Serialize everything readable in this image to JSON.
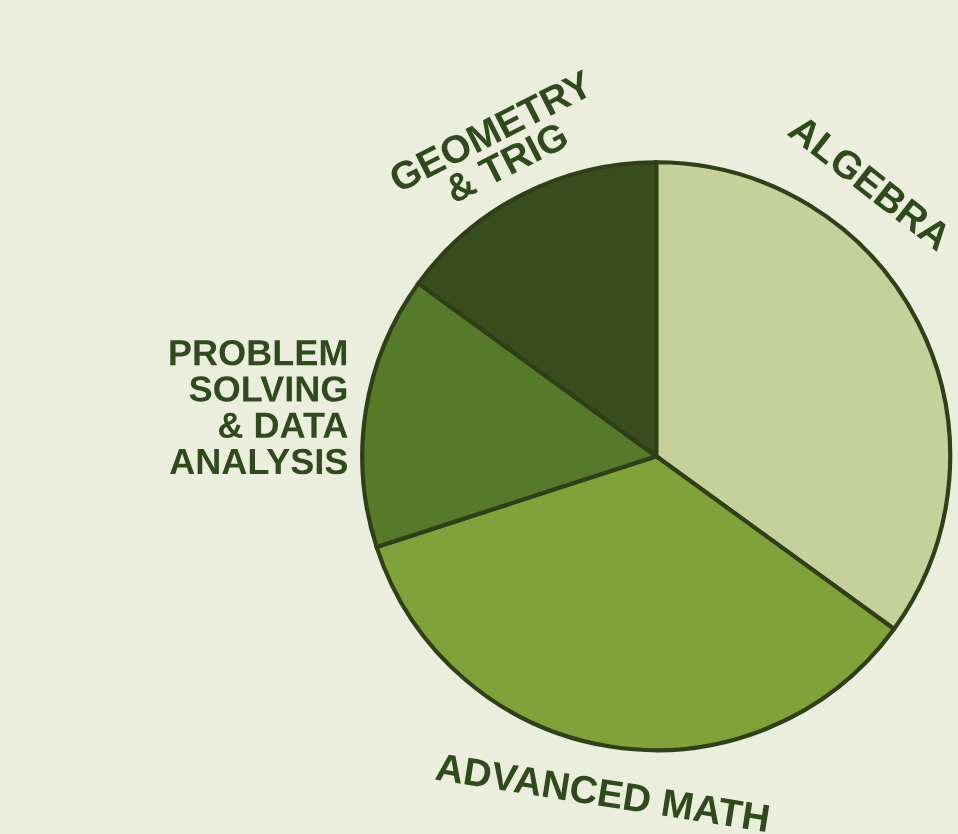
{
  "chart_data": {
    "type": "pie",
    "categories": [
      "ALGEBRA",
      "ADVANCED MATH",
      "PROBLEM\nSOLVING\n& DATA\nANALYSIS",
      "GEOMETRY\n& TRIG"
    ],
    "values": [
      35,
      35,
      15,
      15
    ],
    "colors": [
      "#c5d09b",
      "#7fa33a",
      "#557a2a",
      "#3a4d1e"
    ]
  }
}
